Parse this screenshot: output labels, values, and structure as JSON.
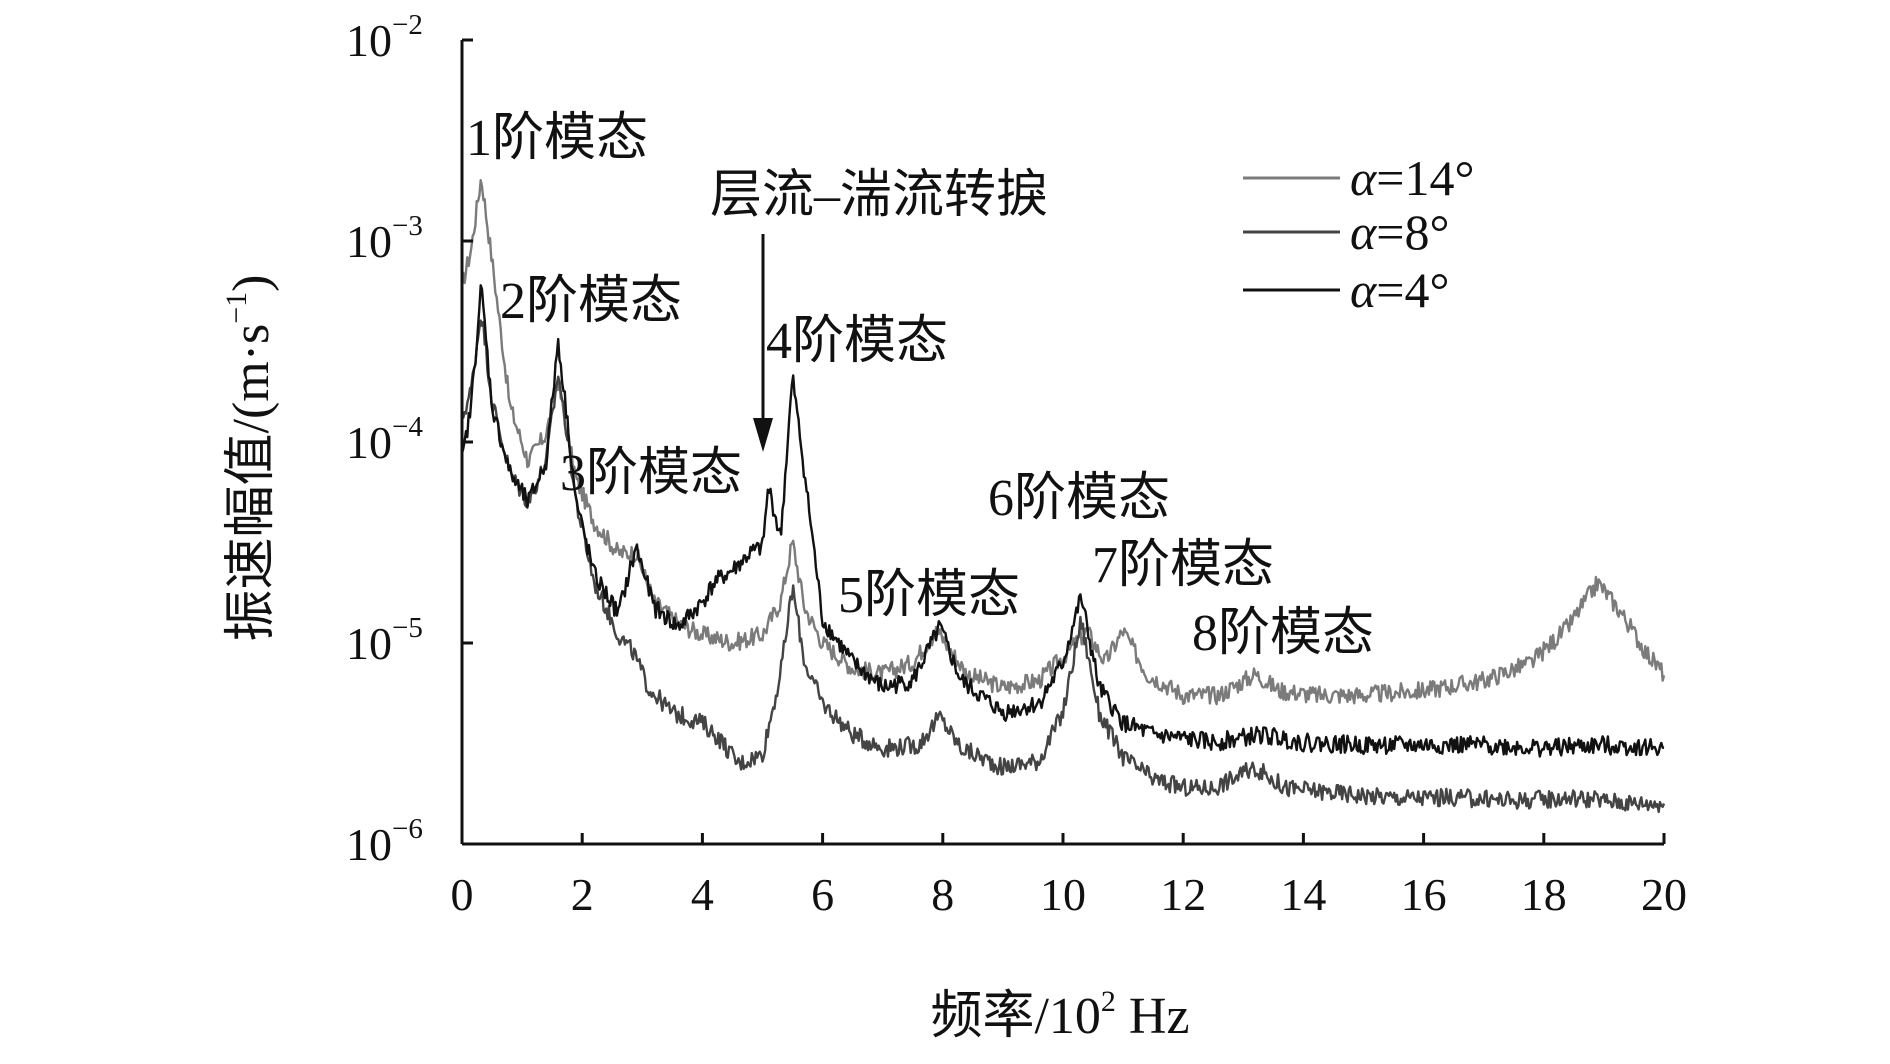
{
  "chart_data": {
    "type": "line",
    "xlabel": "频率/10² Hz",
    "ylabel": "振速幅值/(m·s⁻¹)",
    "x_unit_label": "频率/10",
    "x_unit_sup": "2",
    "x_unit_tail": " Hz",
    "y_label_main": "振速幅值/(m·s",
    "y_label_sup": "−1",
    "y_label_tail": ")",
    "xlim": [
      0,
      20
    ],
    "ylim": [
      1e-06,
      0.01
    ],
    "yscale": "log",
    "x_ticks": [
      "0",
      "2",
      "4",
      "6",
      "8",
      "10",
      "12",
      "14",
      "16",
      "18",
      "20"
    ],
    "y_ticks": [
      {
        "base": "10",
        "exp": "−2"
      },
      {
        "base": "10",
        "exp": "−3"
      },
      {
        "base": "10",
        "exp": "−4"
      },
      {
        "base": "10",
        "exp": "−5"
      },
      {
        "base": "10",
        "exp": "−6"
      }
    ],
    "legend_position": "top-right",
    "series": [
      {
        "name": "α=14°",
        "legend_prefix": "α",
        "legend_suffix": "=14°",
        "color": "#7b7b7b",
        "x": [
          0,
          0.15,
          0.32,
          0.5,
          0.8,
          1.1,
          1.4,
          1.6,
          1.75,
          1.9,
          2.2,
          2.6,
          2.9,
          3.2,
          3.6,
          4.0,
          4.5,
          5.0,
          5.3,
          5.5,
          5.7,
          6.0,
          6.5,
          7.0,
          7.5,
          7.9,
          8.05,
          8.4,
          9.0,
          9.6,
          10.0,
          10.4,
          10.7,
          11.0,
          11.4,
          12.0,
          12.6,
          13.2,
          13.6,
          14.2,
          15.0,
          16.0,
          17.0,
          17.8,
          18.4,
          18.9,
          19.3,
          19.7,
          20.0
        ],
        "y": [
          0.0006,
          0.0009,
          0.0021,
          0.0008,
          0.00015,
          8e-05,
          0.00011,
          0.0002,
          0.00011,
          6.5e-05,
          4e-05,
          2.8e-05,
          2.8e-05,
          1.6e-05,
          1.25e-05,
          1.1e-05,
          1e-05,
          1.1e-05,
          1.6e-05,
          3.2e-05,
          1.5e-05,
          1e-05,
          7.5e-06,
          7e-06,
          8e-06,
          1.15e-05,
          1e-05,
          7e-06,
          6e-06,
          6.5e-06,
          8.5e-06,
          1.15e-05,
          8e-06,
          1.15e-05,
          7e-06,
          5.5e-06,
          5.5e-06,
          7e-06,
          5.8e-06,
          5.5e-06,
          5.5e-06,
          5.8e-06,
          6.5e-06,
          8e-06,
          1.2e-05,
          2e-05,
          1.4e-05,
          9e-06,
          7e-06
        ]
      },
      {
        "name": "α=8°",
        "legend_prefix": "α",
        "legend_suffix": "=8°",
        "color": "#444444",
        "x": [
          0,
          0.15,
          0.32,
          0.5,
          0.8,
          1.1,
          1.4,
          1.6,
          1.75,
          1.9,
          2.2,
          2.6,
          2.85,
          3.1,
          3.5,
          4.0,
          4.3,
          4.6,
          5.0,
          5.3,
          5.5,
          5.7,
          6.0,
          6.5,
          7.0,
          7.6,
          7.95,
          8.3,
          9.0,
          9.6,
          10.0,
          10.3,
          10.6,
          11.0,
          11.5,
          12.0,
          12.5,
          13.2,
          13.7,
          14.5,
          15.5,
          16.5,
          17.5,
          18.5,
          19.5,
          20.0
        ],
        "y": [
          0.00013,
          0.00018,
          0.00045,
          0.00016,
          7e-05,
          5e-05,
          8e-05,
          0.00022,
          0.00011,
          5e-05,
          2e-05,
          1.1e-05,
          9e-06,
          6e-06,
          4.5e-06,
          4e-06,
          3.3e-06,
          2.5e-06,
          2.8e-06,
          7e-06,
          1.9e-05,
          8e-06,
          5e-06,
          3.5e-06,
          3e-06,
          3.1e-06,
          4.3e-06,
          3e-06,
          2.4e-06,
          2.6e-06,
          4.5e-06,
          1.3e-05,
          4.5e-06,
          2.7e-06,
          2.1e-06,
          1.9e-06,
          1.9e-06,
          2.4e-06,
          1.9e-06,
          1.8e-06,
          1.7e-06,
          1.7e-06,
          1.65e-06,
          1.7e-06,
          1.6e-06,
          1.6e-06
        ]
      },
      {
        "name": "α=4°",
        "legend_prefix": "α",
        "legend_suffix": "=4°",
        "color": "#111111",
        "x": [
          0,
          0.15,
          0.32,
          0.5,
          0.8,
          1.1,
          1.4,
          1.6,
          1.75,
          1.9,
          2.2,
          2.6,
          2.9,
          3.2,
          3.6,
          4.0,
          4.2,
          4.5,
          4.8,
          5.0,
          5.1,
          5.3,
          5.5,
          5.7,
          6.0,
          6.5,
          7.0,
          7.5,
          7.95,
          8.3,
          9.0,
          9.6,
          10.0,
          10.3,
          10.6,
          11.0,
          11.5,
          12.5,
          13.3,
          14.0,
          15.0,
          16.0,
          17.0,
          18.0,
          19.0,
          20.0
        ],
        "y": [
          8e-05,
          0.00015,
          0.0006,
          0.00015,
          7e-05,
          5e-05,
          8e-05,
          0.00032,
          0.00013,
          5e-05,
          2.2e-05,
          1.4e-05,
          3e-05,
          1.5e-05,
          1.2e-05,
          1.6e-05,
          2e-05,
          2.3e-05,
          2.8e-05,
          3e-05,
          6e-05,
          3.3e-05,
          0.00021,
          7e-05,
          1.3e-05,
          8e-06,
          6e-06,
          6.5e-06,
          1.2e-05,
          6.5e-06,
          4.5e-06,
          5e-06,
          8e-06,
          1.7e-05,
          6e-06,
          4e-06,
          3.5e-06,
          3.2e-06,
          3.5e-06,
          3.2e-06,
          3.1e-06,
          3.1e-06,
          3.1e-06,
          3e-06,
          3.1e-06,
          3e-06
        ]
      }
    ],
    "annotations": [
      {
        "text": "1阶模态"
      },
      {
        "text": "2阶模态"
      },
      {
        "text": "3阶模态"
      },
      {
        "text": "4阶模态"
      },
      {
        "text": "5阶模态"
      },
      {
        "text": "6阶模态"
      },
      {
        "text": "7阶模态"
      },
      {
        "text": "8阶模态"
      },
      {
        "text": "层流–湍流转捩"
      }
    ]
  }
}
